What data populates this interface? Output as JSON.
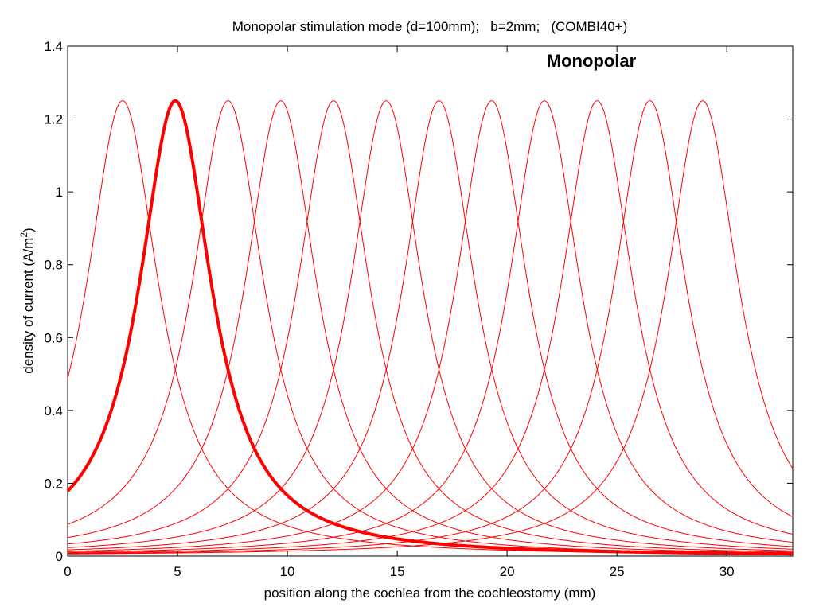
{
  "figure": {
    "title": "Monopolar stimulation mode (d=100mm);   b=2mm;   (COMBI40+)"
  },
  "chart_data": {
    "type": "line",
    "title": "Monopolar stimulation mode (d=100mm);   b=2mm;   (COMBI40+)",
    "xlabel": "position along the cochlea from the cochleostomy (mm)",
    "ylabel": "density of current (A/m²)",
    "ylabel_parts": {
      "base": "density of current (A/m",
      "sup": "2",
      "end": ")"
    },
    "xlim": [
      0,
      33
    ],
    "ylim": [
      0,
      1.4
    ],
    "xticks": [
      0,
      5,
      10,
      15,
      20,
      25,
      30
    ],
    "yticks": [
      0,
      0.2,
      0.4,
      0.6,
      0.8,
      1,
      1.2,
      1.4
    ],
    "xtick_labels": [
      "0",
      "5",
      "10",
      "15",
      "20",
      "25",
      "30"
    ],
    "ytick_labels": [
      "0",
      "0.2",
      "0.4",
      "0.6",
      "0.8",
      "1",
      "1.2",
      "1.4"
    ],
    "grid": false,
    "annotation": "Monopolar",
    "line_color": "#ff0000",
    "curve_model": {
      "peak": 1.25,
      "width_b_mm": 2
    },
    "series": [
      {
        "center": 2.5,
        "peak": 1.25,
        "highlighted": false
      },
      {
        "center": 4.9,
        "peak": 1.25,
        "highlighted": true
      },
      {
        "center": 7.3,
        "peak": 1.25,
        "highlighted": false
      },
      {
        "center": 9.7,
        "peak": 1.25,
        "highlighted": false
      },
      {
        "center": 12.1,
        "peak": 1.25,
        "highlighted": false
      },
      {
        "center": 14.5,
        "peak": 1.25,
        "highlighted": false
      },
      {
        "center": 16.9,
        "peak": 1.25,
        "highlighted": false
      },
      {
        "center": 19.3,
        "peak": 1.25,
        "highlighted": false
      },
      {
        "center": 21.7,
        "peak": 1.25,
        "highlighted": false
      },
      {
        "center": 24.1,
        "peak": 1.25,
        "highlighted": false
      },
      {
        "center": 26.5,
        "peak": 1.25,
        "highlighted": false
      },
      {
        "center": 28.9,
        "peak": 1.25,
        "highlighted": false
      }
    ]
  }
}
